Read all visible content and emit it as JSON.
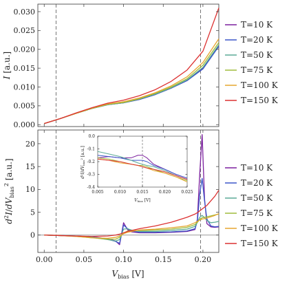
{
  "chart_data": [
    {
      "id": "current",
      "type": "line",
      "ylabel": "I [a.u.]",
      "xlim": [
        -0.008,
        0.22
      ],
      "ylim": [
        -0.0005,
        0.032
      ],
      "yticks": [
        0.0,
        0.005,
        0.01,
        0.015,
        0.02,
        0.025,
        0.03
      ],
      "ytick_labels": [
        "0.000",
        "0.005",
        "0.010",
        "0.015",
        "0.020",
        "0.025",
        "0.030"
      ],
      "xticks": [
        0.0,
        0.05,
        0.1,
        0.15,
        0.2
      ],
      "vlines": [
        0.015,
        0.197
      ],
      "x": [
        0.0,
        0.02,
        0.04,
        0.06,
        0.08,
        0.1,
        0.12,
        0.14,
        0.16,
        0.18,
        0.2,
        0.22
      ],
      "series": [
        {
          "name": "T=10 K",
          "color": "#7b1f9e",
          "values": [
            0.0003,
            0.0016,
            0.003,
            0.0043,
            0.0053,
            0.0058,
            0.0067,
            0.008,
            0.0097,
            0.0117,
            0.015,
            0.021
          ]
        },
        {
          "name": "T=20 K",
          "color": "#3a55c9",
          "values": [
            0.0003,
            0.0016,
            0.003,
            0.0043,
            0.0053,
            0.0058,
            0.0067,
            0.008,
            0.0097,
            0.0117,
            0.0148,
            0.0208
          ]
        },
        {
          "name": "T=50 K",
          "color": "#5aaa96",
          "values": [
            0.0003,
            0.0016,
            0.003,
            0.0043,
            0.0053,
            0.0058,
            0.0068,
            0.0081,
            0.0098,
            0.0119,
            0.0152,
            0.0212
          ]
        },
        {
          "name": "T=75 K",
          "color": "#9fbb3b",
          "values": [
            0.0003,
            0.0016,
            0.003,
            0.0043,
            0.0054,
            0.0059,
            0.0069,
            0.0083,
            0.01,
            0.0122,
            0.0158,
            0.0218
          ]
        },
        {
          "name": "T=100 K",
          "color": "#e6a52e",
          "values": [
            0.0003,
            0.0016,
            0.003,
            0.0044,
            0.0055,
            0.0061,
            0.0071,
            0.0085,
            0.0103,
            0.0127,
            0.0165,
            0.0228
          ]
        },
        {
          "name": "T=150 K",
          "color": "#dc3030",
          "values": [
            0.0003,
            0.0016,
            0.0031,
            0.0045,
            0.0057,
            0.0065,
            0.0077,
            0.0093,
            0.0115,
            0.0145,
            0.0195,
            0.031
          ]
        }
      ]
    },
    {
      "id": "d2",
      "type": "line",
      "xlabel": "V_bias [V]",
      "ylabel": "d²I/dV_bias² [a.u.]",
      "xlim": [
        -0.008,
        0.22
      ],
      "ylim": [
        -3.8,
        23
      ],
      "yticks": [
        0,
        5,
        10,
        15,
        20
      ],
      "ytick_labels": [
        "0",
        "5",
        "10",
        "15",
        "20"
      ],
      "xticks": [
        0.0,
        0.05,
        0.1,
        0.15,
        0.2
      ],
      "xtick_labels": [
        "0.00",
        "0.05",
        "0.10",
        "0.15",
        "0.20"
      ],
      "vlines": [
        0.015,
        0.197
      ],
      "hline": 0,
      "x": [
        0.0,
        0.02,
        0.04,
        0.06,
        0.08,
        0.09,
        0.095,
        0.1,
        0.105,
        0.11,
        0.12,
        0.14,
        0.16,
        0.18,
        0.19,
        0.193,
        0.196,
        0.199,
        0.202,
        0.205,
        0.21,
        0.215,
        0.22
      ],
      "series": [
        {
          "name": "T=10 K",
          "color": "#7b1f9e",
          "values": [
            0,
            -0.1,
            -0.2,
            -0.4,
            -0.8,
            -1.3,
            -2.1,
            2.7,
            1.2,
            0.7,
            0.5,
            0.5,
            0.6,
            0.8,
            1.2,
            3.5,
            13.5,
            22.0,
            8.0,
            2.5,
            1.8,
            1.7,
            1.8
          ]
        },
        {
          "name": "T=20 K",
          "color": "#3a55c9",
          "values": [
            0,
            -0.1,
            -0.2,
            -0.4,
            -0.9,
            -1.4,
            -1.8,
            2.2,
            1.4,
            0.9,
            0.6,
            0.6,
            0.7,
            0.9,
            1.4,
            3.0,
            9.0,
            12.4,
            7.5,
            3.5,
            2.0,
            1.8,
            1.9
          ]
        },
        {
          "name": "T=50 K",
          "color": "#5aaa96",
          "values": [
            0,
            -0.1,
            -0.2,
            -0.5,
            -1.0,
            -1.3,
            -1.0,
            1.3,
            1.4,
            1.1,
            0.8,
            0.8,
            1.0,
            1.3,
            1.9,
            2.8,
            3.9,
            4.3,
            3.8,
            3.2,
            2.7,
            2.8,
            3.0
          ]
        },
        {
          "name": "T=75 K",
          "color": "#9fbb3b",
          "values": [
            0,
            -0.1,
            -0.3,
            -0.6,
            -0.9,
            -0.9,
            -0.5,
            0.4,
            0.9,
            1.0,
            1.0,
            1.1,
            1.3,
            1.7,
            2.3,
            2.8,
            3.4,
            3.8,
            3.9,
            4.0,
            4.2,
            4.4,
            4.6
          ]
        },
        {
          "name": "T=100 K",
          "color": "#e6a52e",
          "values": [
            0,
            -0.1,
            -0.3,
            -0.6,
            -0.7,
            -0.5,
            -0.2,
            0.3,
            0.6,
            0.8,
            1.1,
            1.3,
            1.6,
            2.0,
            2.7,
            3.0,
            3.3,
            3.5,
            3.6,
            3.7,
            4.0,
            4.3,
            4.7
          ]
        },
        {
          "name": "T=150 K",
          "color": "#dc3030",
          "values": [
            0,
            -0.1,
            -0.2,
            -0.3,
            -0.2,
            0,
            0.2,
            0.5,
            0.8,
            1.0,
            1.4,
            2.0,
            2.8,
            3.9,
            4.6,
            4.9,
            5.3,
            5.7,
            6.1,
            6.5,
            7.5,
            8.5,
            9.8
          ]
        }
      ]
    },
    {
      "id": "inset",
      "type": "line",
      "xlabel": "V_bias [V]",
      "ylabel": "d²I/dV_bias² [a.u.]",
      "xlim": [
        0.005,
        0.025
      ],
      "ylim": [
        -0.4,
        0.0
      ],
      "xticks": [
        0.005,
        0.01,
        0.015,
        0.02,
        0.025
      ],
      "xtick_labels": [
        "0.005",
        "0.010",
        "0.015",
        "0.020",
        "0.025"
      ],
      "yticks": [
        0.0,
        -0.1,
        -0.2,
        -0.3,
        -0.4
      ],
      "ytick_labels": [
        "0.0",
        "-0.1",
        "-0.2",
        "-0.3",
        "-0.4"
      ],
      "vlines": [
        0.015
      ],
      "x": [
        0.005,
        0.0075,
        0.01,
        0.0125,
        0.014,
        0.015,
        0.016,
        0.0175,
        0.02,
        0.0225,
        0.025
      ],
      "series": [
        {
          "name": "T=10 K",
          "color": "#7b1f9e",
          "values": [
            -0.17,
            -0.16,
            -0.17,
            -0.17,
            -0.15,
            -0.15,
            -0.17,
            -0.22,
            -0.26,
            -0.3,
            -0.33
          ]
        },
        {
          "name": "T=20 K",
          "color": "#3a55c9",
          "values": [
            -0.15,
            -0.16,
            -0.17,
            -0.19,
            -0.19,
            -0.19,
            -0.2,
            -0.23,
            -0.26,
            -0.3,
            -0.33
          ]
        },
        {
          "name": "T=50 K",
          "color": "#5aaa96",
          "values": [
            -0.12,
            -0.14,
            -0.16,
            -0.19,
            -0.21,
            -0.22,
            -0.23,
            -0.24,
            -0.27,
            -0.31,
            -0.34
          ]
        },
        {
          "name": "T=75 K",
          "color": "#9fbb3b",
          "values": [
            -0.17,
            -0.18,
            -0.2,
            -0.22,
            -0.23,
            -0.23,
            -0.24,
            -0.26,
            -0.29,
            -0.32,
            -0.35
          ]
        },
        {
          "name": "T=100 K",
          "color": "#e6a52e",
          "values": [
            -0.18,
            -0.19,
            -0.21,
            -0.22,
            -0.23,
            -0.24,
            -0.25,
            -0.27,
            -0.29,
            -0.32,
            -0.36
          ]
        },
        {
          "name": "T=150 K",
          "color": "#dc3030",
          "values": [
            -0.18,
            -0.19,
            -0.2,
            -0.22,
            -0.23,
            -0.24,
            -0.25,
            -0.26,
            -0.28,
            -0.31,
            -0.34
          ]
        }
      ]
    }
  ],
  "legend": {
    "entries": [
      "T=10 K",
      "T=20 K",
      "T=50 K",
      "T=75 K",
      "T=100 K",
      "T=150 K"
    ],
    "colors": [
      "#7b1f9e",
      "#3a55c9",
      "#5aaa96",
      "#9fbb3b",
      "#e6a52e",
      "#dc3030"
    ]
  }
}
